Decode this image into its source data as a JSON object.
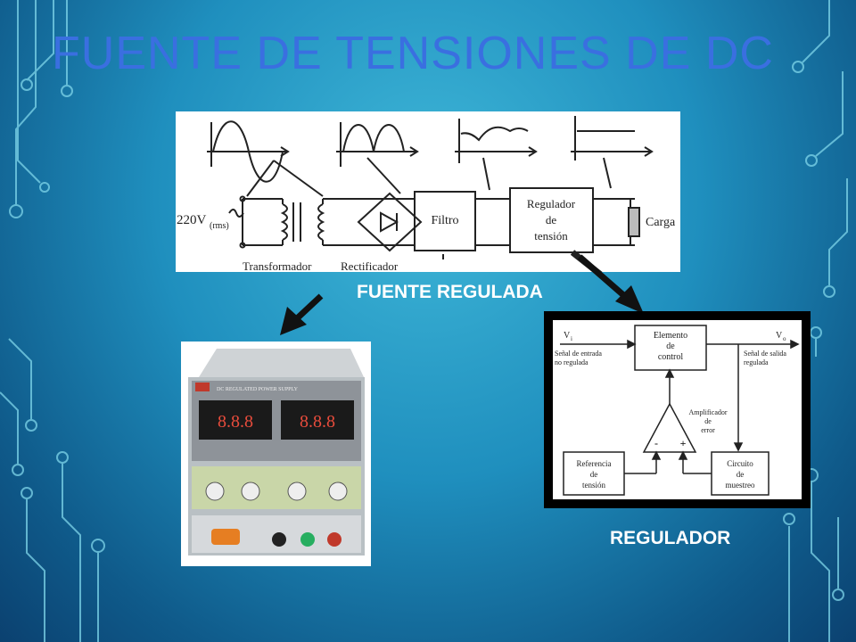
{
  "slide": {
    "title": "FUENTE DE TENSIONES DE DC",
    "caption_regulated": "FUENTE REGULADA",
    "caption_regulator": "REGULADOR"
  },
  "block_diagram": {
    "input_label": "220V",
    "input_sub": "(rms)",
    "transformer": "Transformador",
    "rectifier": "Rectificador",
    "filter": "Filtro",
    "regulator": [
      "Regulador",
      "de",
      "tensión"
    ],
    "load": "Carga"
  },
  "power_supply": {
    "brand": "DC REGULATED POWER SUPPLY",
    "display_left": "8.8.8",
    "display_right": "8.8.8"
  },
  "regulator_diagram": {
    "vi": "V",
    "vi_sub": "i",
    "vo": "V",
    "vo_sub": "o",
    "input_desc": [
      "Señal de entrada",
      "no regulada"
    ],
    "output_desc": [
      "Señal de salida",
      "regulada"
    ],
    "control": [
      "Elemento",
      "de",
      "control"
    ],
    "amplifier": [
      "Amplificador",
      "de",
      "error"
    ],
    "minus": "-",
    "plus": "+",
    "reference": [
      "Referencia",
      "de",
      "tensión"
    ],
    "sampling": [
      "Circuito",
      "de",
      "muestreo"
    ]
  },
  "colors": {
    "title": "#3a6fe0",
    "caption": "#ffffff"
  }
}
